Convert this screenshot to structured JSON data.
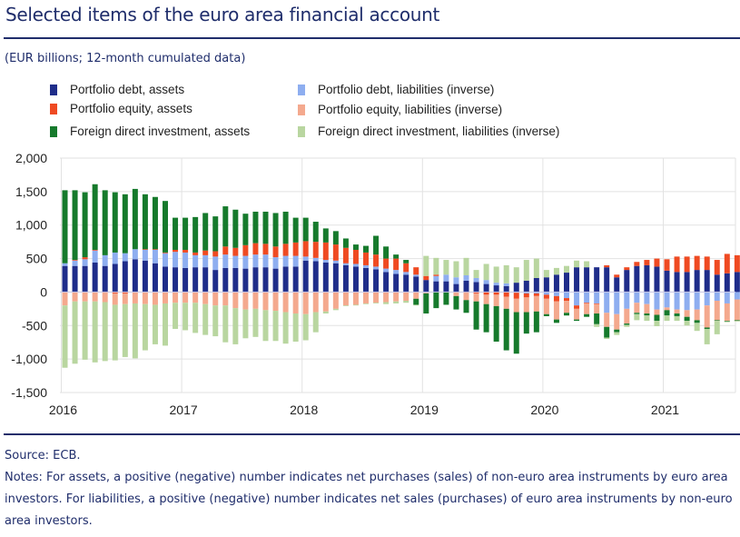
{
  "title": "Selected items of the euro area financial account",
  "subtitle": "(EUR billions; 12-month cumulated data)",
  "source": "Source: ECB.",
  "notes": "Notes: For assets, a positive (negative) number indicates net purchases (sales) of non-euro area instruments by euro area investors. For liabilities, a positive (negative) number indicates net sales (purchases) of euro area instruments by non-euro area investors.",
  "chart_data": {
    "type": "bar",
    "stacked": true,
    "title": "Selected items of the euro area financial account",
    "ylabel": "EUR billions; 12-month cumulated data",
    "xlabel": "",
    "ylim": [
      -1500,
      2000
    ],
    "yticks": [
      2000,
      1500,
      1000,
      500,
      0,
      -500,
      -1000,
      -1500
    ],
    "ytick_labels": [
      "2,000",
      "1,500",
      "1,000",
      "500",
      "0",
      "-500",
      "-1,000",
      "-1,500"
    ],
    "xtick_labels": [
      "2016",
      "2017",
      "2018",
      "2019",
      "2020",
      "2021"
    ],
    "grid": true,
    "legend_position": "top",
    "categories": [
      "2016-01",
      "2016-02",
      "2016-03",
      "2016-04",
      "2016-05",
      "2016-06",
      "2016-07",
      "2016-08",
      "2016-09",
      "2016-10",
      "2016-11",
      "2016-12",
      "2017-01",
      "2017-02",
      "2017-03",
      "2017-04",
      "2017-05",
      "2017-06",
      "2017-07",
      "2017-08",
      "2017-09",
      "2017-10",
      "2017-11",
      "2017-12",
      "2018-01",
      "2018-02",
      "2018-03",
      "2018-04",
      "2018-05",
      "2018-06",
      "2018-07",
      "2018-08",
      "2018-09",
      "2018-10",
      "2018-11",
      "2018-12",
      "2019-01",
      "2019-02",
      "2019-03",
      "2019-04",
      "2019-05",
      "2019-06",
      "2019-07",
      "2019-08",
      "2019-09",
      "2019-10",
      "2019-11",
      "2019-12",
      "2020-01",
      "2020-02",
      "2020-03",
      "2020-04",
      "2020-05",
      "2020-06",
      "2020-07",
      "2020-08",
      "2020-09",
      "2020-10",
      "2020-11",
      "2020-12",
      "2021-01",
      "2021-02",
      "2021-03",
      "2021-04",
      "2021-05",
      "2021-06",
      "2021-07",
      "2021-08"
    ],
    "series": [
      {
        "name": "Portfolio debt, assets",
        "color": "#1f2d8a",
        "values": [
          390,
          390,
          390,
          440,
          390,
          420,
          460,
          490,
          470,
          430,
          380,
          370,
          360,
          370,
          370,
          330,
          360,
          360,
          350,
          370,
          370,
          350,
          380,
          380,
          470,
          460,
          440,
          430,
          400,
          380,
          360,
          340,
          300,
          270,
          260,
          230,
          180,
          160,
          160,
          120,
          170,
          150,
          120,
          100,
          90,
          140,
          170,
          210,
          220,
          260,
          290,
          370,
          370,
          370,
          370,
          220,
          330,
          390,
          400,
          380,
          320,
          300,
          300,
          330,
          330,
          260,
          280,
          300
        ],
        "values_2021_extra_note": ""
      },
      {
        "name": "Portfolio debt, liabilities (inverse)",
        "color": "#8eaef0",
        "values": [
          40,
          80,
          100,
          180,
          160,
          170,
          120,
          150,
          160,
          200,
          200,
          230,
          230,
          180,
          180,
          200,
          200,
          180,
          190,
          190,
          190,
          170,
          160,
          160,
          60,
          50,
          40,
          40,
          30,
          40,
          40,
          40,
          50,
          60,
          40,
          30,
          -10,
          80,
          100,
          100,
          80,
          60,
          60,
          40,
          40,
          -10,
          -20,
          -20,
          -40,
          -60,
          -90,
          -200,
          -160,
          -170,
          -310,
          -330,
          -250,
          -160,
          -180,
          -260,
          -230,
          -260,
          -270,
          -260,
          -200,
          -130,
          -170,
          -110
        ],
        "values_2021_extra_note": ""
      },
      {
        "name": "Portfolio equity, assets",
        "color": "#ef4a22",
        "values": [
          0,
          10,
          30,
          10,
          -10,
          -20,
          -20,
          0,
          10,
          10,
          10,
          30,
          40,
          40,
          70,
          80,
          120,
          120,
          160,
          170,
          160,
          160,
          180,
          200,
          230,
          240,
          260,
          240,
          230,
          210,
          190,
          180,
          150,
          170,
          130,
          110,
          60,
          20,
          0,
          0,
          -10,
          -20,
          -40,
          -40,
          -70,
          -90,
          -60,
          -40,
          -60,
          -80,
          -40,
          -50,
          -10,
          -10,
          30,
          40,
          40,
          60,
          80,
          120,
          170,
          230,
          230,
          210,
          200,
          220,
          290,
          250
        ],
        "values_2021_extra_note": ""
      },
      {
        "name": "Portfolio equity, liabilities (inverse)",
        "color": "#f4a98e",
        "values": [
          -200,
          -140,
          -140,
          -140,
          -140,
          -170,
          -160,
          -170,
          -180,
          -190,
          -170,
          -160,
          -160,
          -160,
          -180,
          -200,
          -200,
          -240,
          -260,
          -250,
          -270,
          -280,
          -300,
          -320,
          -330,
          -300,
          -290,
          -250,
          -200,
          -190,
          -170,
          -160,
          -150,
          -140,
          -130,
          -100,
          -10,
          0,
          0,
          -60,
          -110,
          -120,
          -140,
          -170,
          -180,
          -200,
          -220,
          -230,
          -230,
          -270,
          -180,
          -160,
          -160,
          -140,
          -210,
          -230,
          -220,
          -150,
          -140,
          -80,
          -40,
          -60,
          -100,
          -160,
          -330,
          -290,
          -260,
          -310
        ],
        "values_2021_extra_note": ""
      },
      {
        "name": "Foreign direct investment, assets",
        "color": "#167a2c",
        "values": [
          1090,
          1040,
          970,
          980,
          970,
          900,
          880,
          900,
          820,
          780,
          770,
          480,
          480,
          530,
          560,
          520,
          600,
          570,
          470,
          470,
          480,
          500,
          480,
          370,
          350,
          300,
          210,
          200,
          140,
          80,
          100,
          280,
          180,
          60,
          50,
          -90,
          -300,
          -240,
          -190,
          -200,
          -190,
          -420,
          -420,
          -530,
          -620,
          -620,
          -320,
          -310,
          -30,
          -50,
          -40,
          -20,
          -40,
          -160,
          -160,
          -40,
          -20,
          -20,
          -30,
          -90,
          -80,
          -40,
          -60,
          -40,
          -20,
          -10,
          -10,
          -10
        ],
        "values_2021_extra_note": ""
      },
      {
        "name": "Foreign direct investment, liabilities (inverse)",
        "color": "#b9d6a0",
        "values": [
          -930,
          -930,
          -870,
          -910,
          -880,
          -830,
          -790,
          -820,
          -690,
          -590,
          -630,
          -390,
          -410,
          -450,
          -460,
          -460,
          -550,
          -540,
          -430,
          -420,
          -460,
          -450,
          -470,
          -420,
          -390,
          -300,
          -30,
          -20,
          -10,
          -10,
          -10,
          -10,
          -30,
          -30,
          -30,
          -10,
          300,
          250,
          220,
          240,
          260,
          120,
          240,
          240,
          270,
          230,
          310,
          290,
          110,
          100,
          100,
          100,
          90,
          -40,
          -20,
          -40,
          -30,
          -90,
          -80,
          -80,
          -80,
          -70,
          -70,
          -120,
          -230,
          -200,
          -10,
          -10
        ],
        "values_2021_extra_note": ""
      }
    ]
  },
  "legend": [
    {
      "label": "Portfolio debt, assets",
      "color": "#1f2d8a"
    },
    {
      "label": "Portfolio equity, assets",
      "color": "#ef4a22"
    },
    {
      "label": "Foreign direct investment, assets",
      "color": "#167a2c"
    },
    {
      "label": "Portfolio debt, liabilities (inverse)",
      "color": "#8eaef0"
    },
    {
      "label": "Portfolio equity, liabilities (inverse)",
      "color": "#f4a98e"
    },
    {
      "label": "Foreign direct investment, liabilities (inverse)",
      "color": "#b9d6a0"
    }
  ]
}
